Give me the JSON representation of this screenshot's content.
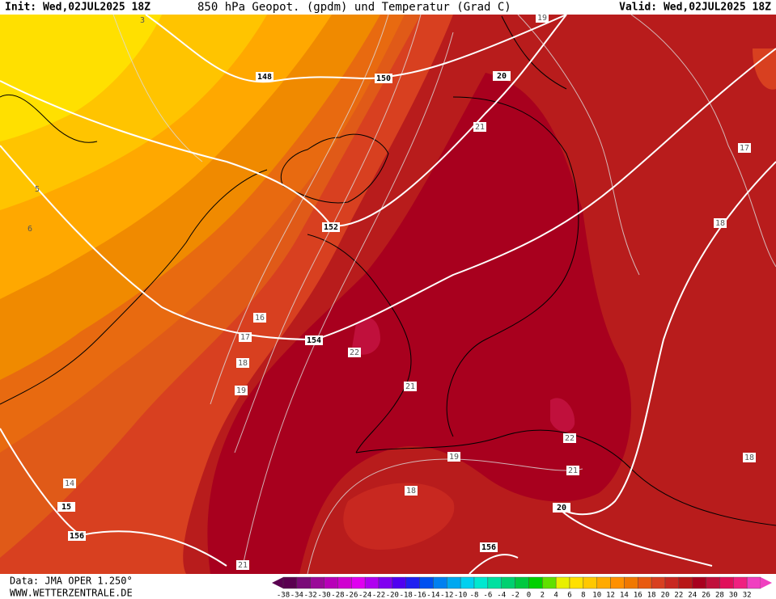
{
  "header": {
    "init": "Init: Wed,02JUL2025 18Z",
    "title": "850 hPa Geopot. (gpdm) und Temperatur (Grad C)",
    "valid": "Valid: Wed,02JUL2025 18Z"
  },
  "map": {
    "isohypse_labels": [
      148,
      150,
      152,
      154,
      156,
      156,
      20,
      20,
      15
    ],
    "isotherm_labels": [
      3,
      5,
      6,
      14,
      16,
      17,
      18,
      19,
      21,
      22,
      21,
      19,
      18,
      22,
      21,
      21,
      17,
      18,
      18,
      19
    ]
  },
  "footer": {
    "data": "Data: JMA OPER 1.250°",
    "site": "WWW.WETTERZENTRALE.DE"
  },
  "legend": {
    "labels": [
      -38,
      -34,
      -32,
      -30,
      -28,
      -26,
      -24,
      -22,
      -20,
      -18,
      -16,
      -14,
      -12,
      -10,
      -8,
      -6,
      -4,
      -2,
      0,
      2,
      4,
      6,
      8,
      10,
      12,
      14,
      16,
      18,
      20,
      22,
      24,
      26,
      28,
      30,
      32
    ],
    "colors": [
      "#5a0050",
      "#7a0a78",
      "#9a0a98",
      "#b800b8",
      "#d000d0",
      "#e000f0",
      "#b000f0",
      "#8000f0",
      "#5000f0",
      "#2020f0",
      "#0050f0",
      "#0080f0",
      "#00a8f0",
      "#00d0f0",
      "#00e8d0",
      "#00e0a0",
      "#00d070",
      "#00c840",
      "#00d000",
      "#60e000",
      "#e8f000",
      "#ffe000",
      "#ffc800",
      "#ffaa00",
      "#ff9000",
      "#f07800",
      "#e85a10",
      "#d84020",
      "#c82820",
      "#b81818",
      "#a8001e",
      "#c0103c",
      "#e0105a",
      "#f02080",
      "#f040c0"
    ]
  }
}
